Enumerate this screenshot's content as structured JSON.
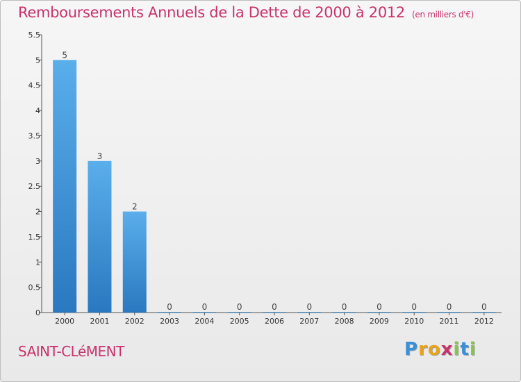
{
  "header": {
    "title": "Remboursements Annuels de la Dette de 2000 à 2012",
    "unit": "(en milliers d'€)"
  },
  "footer": {
    "commune": "SAINT-CLéMENT",
    "logo_letters": [
      "P",
      "r",
      "o",
      "x",
      "i",
      "t",
      "i"
    ],
    "logo_colors": [
      "#3a8fd6",
      "#e8a21c",
      "#e8a21c",
      "#c8336b",
      "#8bc34a",
      "#3a8fd6",
      "#8bc34a"
    ]
  },
  "chart_data": {
    "type": "bar",
    "categories": [
      "2000",
      "2001",
      "2002",
      "2003",
      "2004",
      "2005",
      "2006",
      "2007",
      "2008",
      "2009",
      "2010",
      "2011",
      "2012"
    ],
    "values": [
      5,
      3,
      2,
      0,
      0,
      0,
      0,
      0,
      0,
      0,
      0,
      0,
      0
    ],
    "data_labels": [
      "5",
      "3",
      "2",
      "0",
      "0",
      "0",
      "0",
      "0",
      "0",
      "0",
      "0",
      "0",
      "0"
    ],
    "title": "Remboursements Annuels de la Dette de 2000 à 2012",
    "xlabel": "",
    "ylabel": "",
    "ylim": [
      0,
      5.5
    ],
    "yticks": [
      "0",
      "0.5",
      "1",
      "1.5",
      "2",
      "2.5",
      "3",
      "3.5",
      "4",
      "4.5",
      "5",
      "5.5"
    ],
    "bar_color": "#4a9fe0",
    "grid": false
  }
}
